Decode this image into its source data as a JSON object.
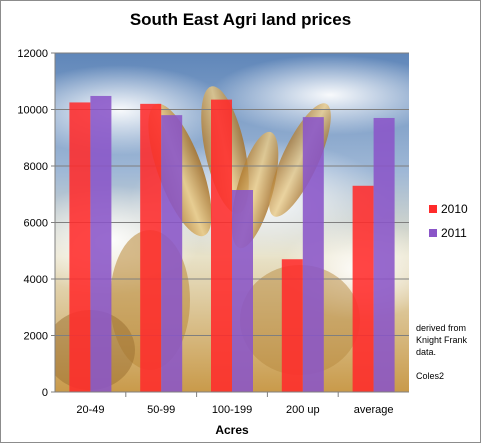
{
  "chart_data": {
    "type": "bar",
    "title": "South East Agri land prices",
    "xlabel": "Acres",
    "ylabel": "",
    "categories": [
      "20-49",
      "50-99",
      "100-199",
      "200 up",
      "average"
    ],
    "series": [
      {
        "name": "2010",
        "values": [
          10250,
          10200,
          10350,
          4700,
          7300
        ],
        "color": "#ff2b2b"
      },
      {
        "name": "2011",
        "values": [
          10480,
          9800,
          7150,
          9730,
          9700
        ],
        "color": "#8a55c8"
      }
    ],
    "ylim": [
      0,
      12000
    ],
    "yticks": [
      0,
      2000,
      4000,
      6000,
      8000,
      10000,
      12000
    ],
    "grid": true,
    "legend_position": "right",
    "background": "wheat-and-sky photograph"
  },
  "note": {
    "line1": "derived from",
    "line2": "Knight Frank",
    "line3": "data.",
    "line4": "Coles2"
  }
}
